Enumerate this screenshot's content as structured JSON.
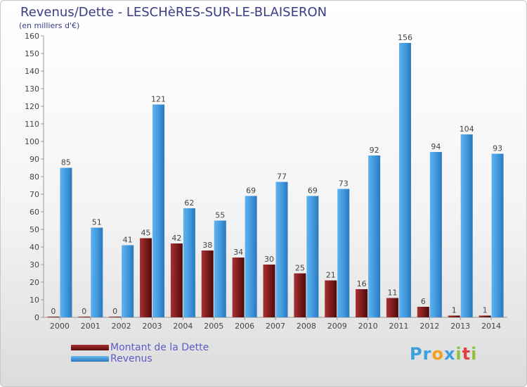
{
  "title": "Revenus/Dette - LESCHèRES-SUR-LE-BLAISERON",
  "subtitle": "(en milliers d'€)",
  "logo": {
    "letters": [
      "P",
      "r",
      "o",
      "x",
      "i",
      "t",
      "i"
    ],
    "colors": [
      "#3aa0e0",
      "#3aa0e0",
      "#f0a020",
      "#3aa0e0",
      "#90c040",
      "#e04040",
      "#90c040"
    ]
  },
  "chart_data": {
    "type": "bar",
    "title": "Revenus/Dette - LESCHèRES-SUR-LE-BLAISERON",
    "ylabel": "(en milliers d'€)",
    "ylim": [
      0,
      160
    ],
    "yticks": [
      0,
      10,
      20,
      30,
      40,
      50,
      60,
      70,
      80,
      90,
      100,
      110,
      120,
      130,
      140,
      150,
      160
    ],
    "grid": false,
    "legend_position": "bottom-left",
    "categories": [
      "2000",
      "2001",
      "2002",
      "2003",
      "2004",
      "2005",
      "2006",
      "2007",
      "2008",
      "2009",
      "2010",
      "2011",
      "2012",
      "2013",
      "2014"
    ],
    "series": [
      {
        "name": "Montant de la Dette",
        "color": "#7a1a1a",
        "values": [
          0,
          0,
          0,
          45,
          42,
          38,
          34,
          30,
          25,
          21,
          16,
          11,
          6,
          1,
          1
        ]
      },
      {
        "name": "Revenus",
        "color": "#3f97dc",
        "values": [
          85,
          51,
          41,
          121,
          62,
          55,
          69,
          77,
          69,
          73,
          92,
          156,
          94,
          104,
          93
        ]
      }
    ]
  }
}
